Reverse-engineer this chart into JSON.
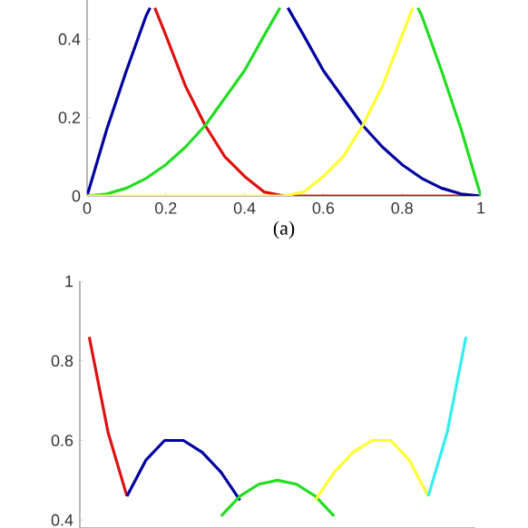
{
  "chart_data": [
    {
      "type": "line",
      "xlabel": "(a)",
      "xlim": [
        0,
        1
      ],
      "ylim": [
        0,
        0.5
      ],
      "xticks": [
        0,
        0.2,
        0.4,
        0.6,
        0.8,
        1
      ],
      "yticks": [
        0,
        0.2,
        0.4
      ],
      "series": [
        {
          "color": "#dd1111",
          "x": [
            0.172,
            0.2,
            0.25,
            0.3,
            0.35,
            0.4,
            0.45,
            0.5,
            1
          ],
          "values": [
            0.48,
            0.41,
            0.28,
            0.18,
            0.1,
            0.05,
            0.01,
            0,
            0
          ]
        },
        {
          "color": "#0000a0",
          "x": [
            0,
            0.05,
            0.1,
            0.15,
            0.16,
            0.333,
            0.51,
            0.55,
            0.6,
            0.65,
            0.7,
            0.75,
            0.8,
            0.85,
            0.9,
            0.95,
            1
          ],
          "values": [
            0,
            0.17,
            0.32,
            0.46,
            0.48,
            null,
            0.48,
            0.41,
            0.32,
            0.25,
            0.18,
            0.125,
            0.08,
            0.045,
            0.02,
            0.005,
            0
          ]
        },
        {
          "color": "#22dd22",
          "x": [
            0,
            0.05,
            0.1,
            0.15,
            0.2,
            0.25,
            0.3,
            0.35,
            0.4,
            0.45,
            0.49,
            0.667,
            0.84,
            0.85,
            0.9,
            0.95,
            1
          ],
          "values": [
            0,
            0.005,
            0.02,
            0.045,
            0.08,
            0.125,
            0.18,
            0.25,
            0.32,
            0.41,
            0.48,
            null,
            0.48,
            0.46,
            0.32,
            0.17,
            0
          ]
        },
        {
          "color": "#ffff33",
          "x": [
            0,
            0.5,
            0.55,
            0.6,
            0.65,
            0.7,
            0.75,
            0.8,
            0.827
          ],
          "values": [
            0,
            0,
            0.01,
            0.05,
            0.1,
            0.18,
            0.28,
            0.41,
            0.48
          ]
        }
      ]
    },
    {
      "type": "line",
      "categories": [
        null,
        null,
        null,
        null,
        null,
        null,
        null,
        null,
        null,
        null,
        null,
        null,
        null,
        null,
        null,
        null,
        null,
        null,
        null,
        null,
        null
      ],
      "ylim": [
        0.38,
        1
      ],
      "yticks": [
        0.4,
        0.6,
        0.8,
        1
      ],
      "tick_labels": "y",
      "series": [
        {
          "color": "#dd1111",
          "values": [
            0.86,
            0.62,
            0.46,
            null,
            null,
            null,
            null,
            null,
            null,
            null,
            null,
            null,
            null,
            null,
            null,
            null,
            null,
            null,
            null,
            null,
            null
          ]
        },
        {
          "color": "#0000a0",
          "values": [
            null,
            null,
            0.46,
            0.55,
            0.6,
            0.6,
            0.57,
            0.52,
            0.45,
            null,
            null,
            null,
            null,
            null,
            null,
            null,
            null,
            null,
            null,
            null,
            null
          ]
        },
        {
          "color": "#22dd22",
          "values": [
            null,
            null,
            null,
            null,
            null,
            null,
            null,
            0.41,
            0.46,
            0.49,
            0.5,
            0.49,
            0.46,
            0.41,
            null,
            null,
            null,
            null,
            null,
            null,
            null
          ]
        },
        {
          "color": "#ffff33",
          "values": [
            null,
            null,
            null,
            null,
            null,
            null,
            null,
            null,
            null,
            null,
            null,
            null,
            0.45,
            0.52,
            0.57,
            0.6,
            0.6,
            0.55,
            0.46,
            null,
            null
          ]
        },
        {
          "color": "#33eeee",
          "values": [
            null,
            null,
            null,
            null,
            null,
            null,
            null,
            null,
            null,
            null,
            null,
            null,
            null,
            null,
            null,
            null,
            null,
            null,
            0.46,
            0.62,
            0.86
          ]
        }
      ]
    }
  ]
}
